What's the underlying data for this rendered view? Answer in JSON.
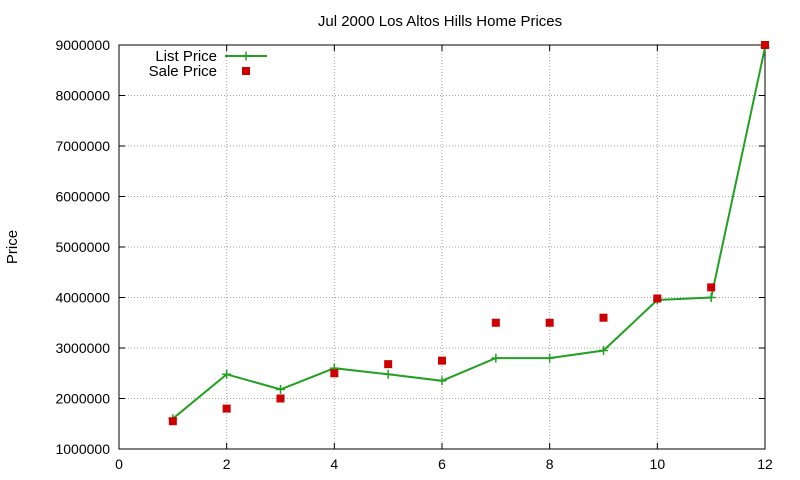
{
  "chart_data": {
    "type": "line",
    "title": "Jul 2000 Los Altos Hills Home Prices",
    "xlabel": "",
    "ylabel": "Price",
    "xlim": [
      0,
      12
    ],
    "ylim": [
      1000000,
      9000000
    ],
    "x_ticks": [
      "0",
      "2",
      "4",
      "6",
      "8",
      "10",
      "12"
    ],
    "y_ticks": [
      "1000000",
      "2000000",
      "3000000",
      "4000000",
      "5000000",
      "6000000",
      "7000000",
      "8000000",
      "9000000"
    ],
    "grid": true,
    "legend_position": "top-left",
    "series": [
      {
        "name": "List Price",
        "style": "line+cross",
        "color": "#22a022",
        "x": [
          1,
          2,
          3,
          4,
          5,
          6,
          7,
          8,
          9,
          10,
          11,
          12
        ],
        "y": [
          1600000,
          2480000,
          2180000,
          2600000,
          2480000,
          2350000,
          2800000,
          2800000,
          2950000,
          3950000,
          4000000,
          8950000
        ]
      },
      {
        "name": "Sale Price",
        "style": "square-points",
        "color": "#cc0000",
        "x": [
          1,
          2,
          3,
          4,
          5,
          6,
          7,
          8,
          9,
          10,
          11,
          12
        ],
        "y": [
          1550000,
          1800000,
          2000000,
          2500000,
          2680000,
          2750000,
          3500000,
          3500000,
          3600000,
          3980000,
          4200000,
          9000000
        ]
      }
    ]
  }
}
